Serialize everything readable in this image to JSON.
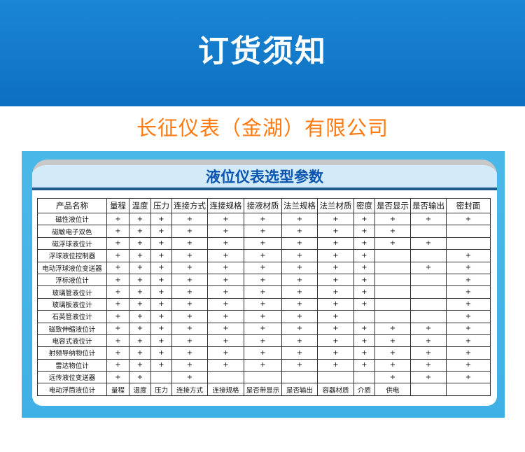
{
  "banner": {
    "title": "订货须知"
  },
  "panel": {
    "title": "液位仪表选型参数"
  },
  "watermark": "长征仪表（金湖）有限公司",
  "table": {
    "headers": [
      "产品名称",
      "量程",
      "温度",
      "压力",
      "连接方式",
      "连接规格",
      "接液材质",
      "法兰规格",
      "法兰材质",
      "密度",
      "是否显示",
      "是否输出",
      "密封面"
    ],
    "rows": [
      [
        "磁性液位计",
        "+",
        "+",
        "+",
        "+",
        "+",
        "+",
        "+",
        "+",
        "+",
        "+",
        "+",
        "+"
      ],
      [
        "磁敏电子双色",
        "+",
        "+",
        "+",
        "+",
        "+",
        "+",
        "+",
        "+",
        "+",
        "+",
        "",
        ""
      ],
      [
        "磁浮球液位计",
        "+",
        "+",
        "+",
        "+",
        "+",
        "+",
        "+",
        "+",
        "+",
        "+",
        "+",
        ""
      ],
      [
        "浮球液位控制器",
        "+",
        "+",
        "+",
        "+",
        "+",
        "+",
        "+",
        "+",
        "+",
        "",
        "",
        "+"
      ],
      [
        "电动浮球液位变送器",
        "+",
        "+",
        "+",
        "+",
        "+",
        "+",
        "+",
        "+",
        "+",
        "",
        "+",
        "+"
      ],
      [
        "浮标液位计",
        "+",
        "+",
        "+",
        "+",
        "+",
        "+",
        "+",
        "+",
        "+",
        "",
        "",
        "+"
      ],
      [
        "玻璃管液位计",
        "+",
        "+",
        "+",
        "+",
        "+",
        "+",
        "+",
        "+",
        "+",
        "",
        "",
        "+"
      ],
      [
        "玻璃板液位计",
        "+",
        "+",
        "+",
        "+",
        "+",
        "+",
        "+",
        "+",
        "+",
        "",
        "",
        "+"
      ],
      [
        "石英管液位计",
        "+",
        "+",
        "+",
        "+",
        "+",
        "+",
        "+",
        "+",
        "",
        "",
        "",
        "+"
      ],
      [
        "磁致伸缩液位计",
        "+",
        "+",
        "+",
        "+",
        "+",
        "+",
        "+",
        "+",
        "+",
        "+",
        "+",
        "+"
      ],
      [
        "电容式液位计",
        "+",
        "+",
        "+",
        "+",
        "+",
        "+",
        "+",
        "+",
        "+",
        "+",
        "+",
        "+"
      ],
      [
        "射频导纳物位计",
        "+",
        "+",
        "+",
        "+",
        "+",
        "+",
        "+",
        "+",
        "+",
        "+",
        "+",
        "+"
      ],
      [
        "雷达物位计",
        "+",
        "+",
        "+",
        "+",
        "+",
        "+",
        "+",
        "+",
        "+",
        "+",
        "+",
        "+"
      ],
      [
        "远传液位变送器",
        "+",
        "+",
        "",
        "+",
        "",
        "",
        "",
        "",
        "",
        "+",
        "+",
        "+"
      ],
      [
        "电动浮筒液位计",
        "量程",
        "温度",
        "压力",
        "连接方式",
        "连接规格",
        "是否带显示",
        "是否输出",
        "容器材质",
        "介质",
        "供电",
        "",
        ""
      ]
    ]
  }
}
